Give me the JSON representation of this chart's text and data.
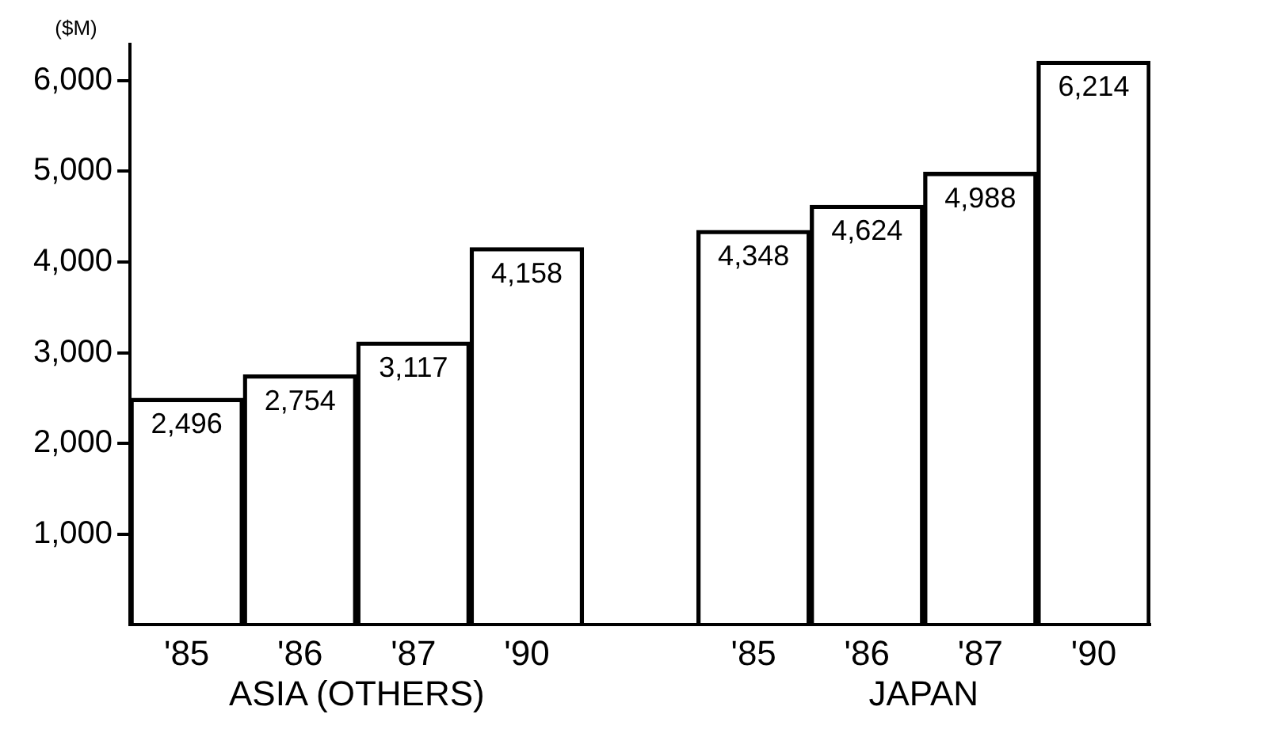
{
  "chart_data": {
    "type": "bar",
    "ylabel": "($M)",
    "categories": [
      "'85",
      "'86",
      "'87",
      "'90",
      null,
      "'85",
      "'86",
      "'87",
      "'90"
    ],
    "values": [
      2496,
      2754,
      3117,
      4158,
      null,
      4348,
      4624,
      4988,
      6214
    ],
    "value_labels": [
      "2,496",
      "2,754",
      "3,117",
      "4,158",
      null,
      "4,348",
      "4,624",
      "4,988",
      "6,214"
    ],
    "color": "#000000",
    "ylim": [
      0,
      6400
    ],
    "yticks": [
      {
        "value": 1000,
        "label": "1,000"
      },
      {
        "value": 2000,
        "label": "2,000"
      },
      {
        "value": 3000,
        "label": "3,000"
      },
      {
        "value": 4000,
        "label": "4,000"
      },
      {
        "value": 5000,
        "label": "5,000"
      },
      {
        "value": 6000,
        "label": "6,000"
      }
    ],
    "annotations": [
      "ASIA (OTHERS)",
      "JAPAN"
    ],
    "grid": false,
    "legend": false
  }
}
